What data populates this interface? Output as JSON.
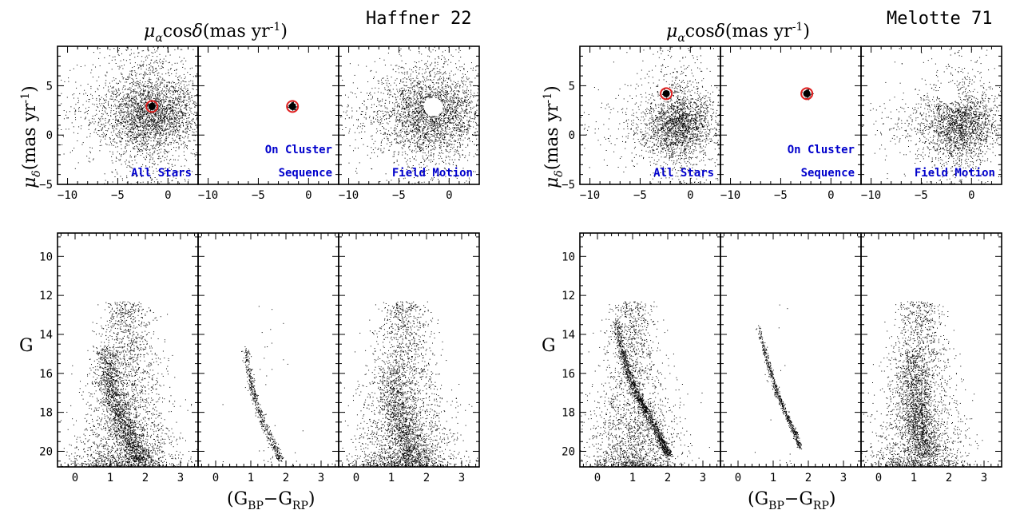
{
  "chart_data": [
    {
      "type": "scatter",
      "group": 0,
      "kind": "pm",
      "cluster": "Haffner 22",
      "panel": "All Stars",
      "xlabel": "μαcosδ(mas yr⁻¹)",
      "ylabel": "μδ(mas yr⁻¹)",
      "xlim": [
        -11,
        3
      ],
      "ylim": [
        -5,
        9
      ],
      "x_ticks": [
        -10,
        -5,
        0
      ],
      "y_ticks": [
        -5,
        0,
        5
      ],
      "annotation": [
        "All Stars"
      ],
      "circle": {
        "x": -1.6,
        "y": 2.9,
        "style": "red-ring-filled-black"
      },
      "distribution": {
        "center_x": -1.8,
        "center_y": 2.2,
        "sigma_x": 3.0,
        "sigma_y": 2.6,
        "n": 3600
      }
    },
    {
      "type": "scatter",
      "group": 0,
      "kind": "pm",
      "cluster": "Haffner 22",
      "panel": "Cluster",
      "xlim": [
        -11,
        3
      ],
      "ylim": [
        -5,
        9
      ],
      "x_ticks": [
        -10,
        -5,
        0
      ],
      "y_ticks": [
        -5,
        0,
        5
      ],
      "annotation": [
        "On Cluster",
        "Sequence"
      ],
      "circle": {
        "x": -1.6,
        "y": 2.9,
        "style": "red-ring-filled-black"
      },
      "distribution": {
        "center_x": -1.6,
        "center_y": 2.9,
        "sigma_x": 0.12,
        "sigma_y": 0.12,
        "n": 220
      }
    },
    {
      "type": "scatter",
      "group": 0,
      "kind": "pm",
      "cluster": "Haffner 22",
      "panel": "Field Motion",
      "xlim": [
        -11,
        3
      ],
      "ylim": [
        -5,
        9
      ],
      "x_ticks": [
        -10,
        -5,
        0
      ],
      "y_ticks": [
        -5,
        0,
        5
      ],
      "annotation": [
        "Field Motion"
      ],
      "circle": {
        "x": -1.6,
        "y": 2.9,
        "style": "white-hole"
      },
      "distribution": {
        "center_x": -1.8,
        "center_y": 2.2,
        "sigma_x": 3.0,
        "sigma_y": 2.6,
        "n": 3400
      }
    },
    {
      "type": "scatter",
      "group": 0,
      "kind": "cmd",
      "cluster": "Haffner 22",
      "panel": "All Stars",
      "xlabel": "(G_BP−G_RP)",
      "ylabel": "G",
      "xlim": [
        -0.5,
        3.5
      ],
      "ylim": [
        20.8,
        8.8
      ],
      "x_ticks": [
        0,
        1,
        2,
        3
      ],
      "y_ticks": [
        10,
        12,
        14,
        16,
        18,
        20
      ],
      "sequence": {
        "points": [
          [
            0.85,
            14.6
          ],
          [
            0.9,
            15.5
          ],
          [
            1.0,
            16.5
          ],
          [
            1.15,
            17.5
          ],
          [
            1.35,
            18.5
          ],
          [
            1.6,
            19.5
          ],
          [
            1.85,
            20.5
          ]
        ],
        "n": 1400,
        "spread": 0.18
      },
      "field": {
        "center": 1.45,
        "width": 0.5,
        "n": 2600
      }
    },
    {
      "type": "scatter",
      "group": 0,
      "kind": "cmd",
      "cluster": "Haffner 22",
      "panel": "Cluster",
      "xlim": [
        -0.5,
        3.5
      ],
      "ylim": [
        20.8,
        8.8
      ],
      "x_ticks": [
        0,
        1,
        2,
        3
      ],
      "y_ticks": [
        10,
        12,
        14,
        16,
        18,
        20
      ],
      "sequence": {
        "points": [
          [
            0.85,
            14.6
          ],
          [
            0.9,
            15.5
          ],
          [
            1.0,
            16.5
          ],
          [
            1.15,
            17.5
          ],
          [
            1.35,
            18.5
          ],
          [
            1.6,
            19.5
          ],
          [
            1.85,
            20.5
          ]
        ],
        "n": 520,
        "spread": 0.05
      },
      "field": {
        "center": 1.5,
        "width": 0.4,
        "n": 40
      }
    },
    {
      "type": "scatter",
      "group": 0,
      "kind": "cmd",
      "cluster": "Haffner 22",
      "panel": "Field Motion",
      "xlim": [
        -0.5,
        3.5
      ],
      "ylim": [
        20.8,
        8.8
      ],
      "x_ticks": [
        0,
        1,
        2,
        3
      ],
      "y_ticks": [
        10,
        12,
        14,
        16,
        18,
        20
      ],
      "sequence": {
        "points": [
          [
            1.0,
            15.5
          ],
          [
            1.05,
            16.5
          ],
          [
            1.1,
            17.5
          ],
          [
            1.25,
            18.5
          ],
          [
            1.4,
            19.5
          ],
          [
            1.6,
            20.5
          ]
        ],
        "n": 900,
        "spread": 0.25
      },
      "field": {
        "center": 1.35,
        "width": 0.5,
        "n": 2600
      }
    },
    {
      "type": "scatter",
      "group": 1,
      "kind": "pm",
      "cluster": "Melotte 71",
      "panel": "All Stars",
      "xlabel": "μαcosδ(mas yr⁻¹)",
      "ylabel": "μδ(mas yr⁻¹)",
      "xlim": [
        -11,
        3
      ],
      "ylim": [
        -5,
        9
      ],
      "x_ticks": [
        -10,
        -5,
        0
      ],
      "y_ticks": [
        -5,
        0,
        5
      ],
      "annotation": [
        "All Stars"
      ],
      "circle": {
        "x": -2.4,
        "y": 4.2,
        "style": "red-ring-filled-black"
      },
      "distribution": {
        "center_x": -1.2,
        "center_y": 1.0,
        "sigma_x": 2.2,
        "sigma_y": 2.2,
        "n": 2600
      }
    },
    {
      "type": "scatter",
      "group": 1,
      "kind": "pm",
      "cluster": "Melotte 71",
      "panel": "Cluster",
      "xlim": [
        -11,
        3
      ],
      "ylim": [
        -5,
        9
      ],
      "x_ticks": [
        -10,
        -5,
        0
      ],
      "y_ticks": [
        -5,
        0,
        5
      ],
      "annotation": [
        "On Cluster",
        "Sequence"
      ],
      "circle": {
        "x": -2.4,
        "y": 4.2,
        "style": "red-ring-filled-black"
      },
      "distribution": {
        "center_x": -2.4,
        "center_y": 4.2,
        "sigma_x": 0.12,
        "sigma_y": 0.12,
        "n": 220
      }
    },
    {
      "type": "scatter",
      "group": 1,
      "kind": "pm",
      "cluster": "Melotte 71",
      "panel": "Field Motion",
      "xlim": [
        -11,
        3
      ],
      "ylim": [
        -5,
        9
      ],
      "x_ticks": [
        -10,
        -5,
        0
      ],
      "y_ticks": [
        -5,
        0,
        5
      ],
      "annotation": [
        "Field Motion"
      ],
      "circle": {
        "x": -2.4,
        "y": 4.2,
        "style": "white-hole"
      },
      "distribution": {
        "center_x": -1.2,
        "center_y": 1.0,
        "sigma_x": 2.2,
        "sigma_y": 2.2,
        "n": 2500
      }
    },
    {
      "type": "scatter",
      "group": 1,
      "kind": "cmd",
      "cluster": "Melotte 71",
      "panel": "All Stars",
      "xlabel": "(G_BP−G_RP)",
      "ylabel": "G",
      "xlim": [
        -0.5,
        3.5
      ],
      "ylim": [
        20.8,
        8.8
      ],
      "x_ticks": [
        0,
        1,
        2,
        3
      ],
      "y_ticks": [
        10,
        12,
        14,
        16,
        18,
        20
      ],
      "sequence": {
        "points": [
          [
            0.5,
            13.2
          ],
          [
            0.65,
            14.5
          ],
          [
            0.85,
            15.8
          ],
          [
            1.1,
            17.0
          ],
          [
            1.4,
            18.0
          ],
          [
            1.75,
            19.2
          ],
          [
            2.0,
            20.2
          ]
        ],
        "n": 1300,
        "spread": 0.06
      },
      "field": {
        "center": 1.0,
        "width": 0.45,
        "n": 2300
      }
    },
    {
      "type": "scatter",
      "group": 1,
      "kind": "cmd",
      "cluster": "Melotte 71",
      "panel": "Cluster",
      "xlim": [
        -0.5,
        3.5
      ],
      "ylim": [
        20.8,
        8.8
      ],
      "x_ticks": [
        0,
        1,
        2,
        3
      ],
      "y_ticks": [
        10,
        12,
        14,
        16,
        18,
        20
      ],
      "sequence": {
        "points": [
          [
            0.55,
            13.4
          ],
          [
            0.7,
            14.5
          ],
          [
            0.9,
            15.8
          ],
          [
            1.1,
            17.0
          ],
          [
            1.35,
            18.0
          ],
          [
            1.6,
            19.0
          ],
          [
            1.75,
            19.8
          ]
        ],
        "n": 620,
        "spread": 0.035
      },
      "field": {
        "center": 1.2,
        "width": 0.3,
        "n": 20
      }
    },
    {
      "type": "scatter",
      "group": 1,
      "kind": "cmd",
      "cluster": "Melotte 71",
      "panel": "Field Motion",
      "xlim": [
        -0.5,
        3.5
      ],
      "ylim": [
        20.8,
        8.8
      ],
      "x_ticks": [
        0,
        1,
        2,
        3
      ],
      "y_ticks": [
        10,
        12,
        14,
        16,
        18,
        20
      ],
      "sequence": {
        "points": [
          [
            0.95,
            15.0
          ],
          [
            1.0,
            16.0
          ],
          [
            1.05,
            17.0
          ],
          [
            1.1,
            18.0
          ],
          [
            1.2,
            19.0
          ],
          [
            1.35,
            20.3
          ]
        ],
        "n": 1100,
        "spread": 0.22
      },
      "field": {
        "center": 1.15,
        "width": 0.45,
        "n": 2400
      }
    }
  ],
  "labels": {
    "pm_x": "μαcosδ(mas yr⁻¹)",
    "pm_y": "μδ(mas yr⁻¹)",
    "cmd_x": "(GBP−GRP)",
    "cmd_y": "G"
  },
  "colors": {
    "points": "#000000",
    "annotation": "#0000cc",
    "ring": "#e02020",
    "hole": "#ffffff"
  }
}
